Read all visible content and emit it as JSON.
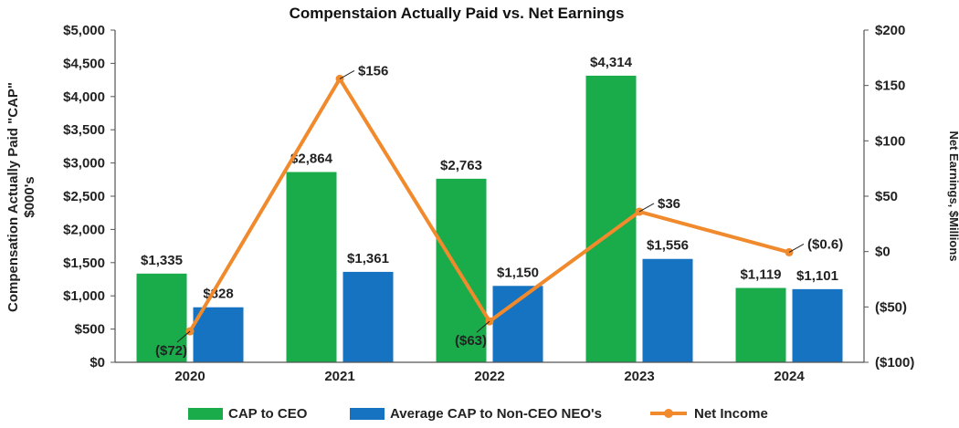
{
  "chart_data": {
    "type": "bar",
    "title": "Compenstaion Actually Paid vs. Net Earnings",
    "categories": [
      "2020",
      "2021",
      "2022",
      "2023",
      "2024"
    ],
    "ylabel": [
      "Compensation Actually Paid \"CAP\"",
      "$000's"
    ],
    "y2label": "Net Earnings, $Millions",
    "ylim": [
      0,
      5000
    ],
    "y2lim": [
      -100,
      200
    ],
    "yticks": [
      "$0",
      "$500",
      "$1,000",
      "$1,500",
      "$2,000",
      "$2,500",
      "$3,000",
      "$3,500",
      "$4,000",
      "$4,500",
      "$5,000"
    ],
    "y2ticks": [
      "($100)",
      "($50)",
      "$0",
      "$50",
      "$100",
      "$150",
      "$200"
    ],
    "series": [
      {
        "name": "CAP to CEO",
        "axis": "left",
        "kind": "bar",
        "color": "#1aab4b",
        "values": [
          1335,
          2864,
          2763,
          4314,
          1119
        ],
        "labels": [
          "$1,335",
          "$2,864",
          "$2,763",
          "$4,314",
          "$1,119"
        ]
      },
      {
        "name": "Average CAP to Non-CEO NEO's",
        "axis": "right-bar",
        "kind": "bar",
        "color": "#1573c1",
        "values": [
          828,
          1361,
          1150,
          1556,
          1101
        ],
        "labels": [
          "$828",
          "$1,361",
          "$1,150",
          "$1,556",
          "$1,101"
        ]
      },
      {
        "name": "Net Income",
        "axis": "right",
        "kind": "line",
        "color": "#f08a2c",
        "values": [
          -72,
          156,
          -63,
          36,
          -0.6
        ],
        "labels": [
          "($72)",
          "$156",
          "($63)",
          "$36",
          "($0.6)"
        ]
      }
    ],
    "legend": "bottom"
  }
}
